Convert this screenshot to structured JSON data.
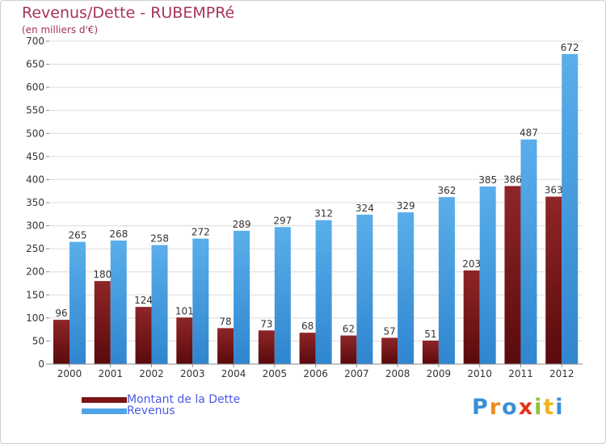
{
  "chart_data": {
    "type": "bar",
    "title": "Revenus/Dette - RUBEMPRé",
    "subtitle": "(en milliers d'€)",
    "categories": [
      "2000",
      "2001",
      "2002",
      "2003",
      "2004",
      "2005",
      "2006",
      "2007",
      "2008",
      "2009",
      "2010",
      "2011",
      "2012"
    ],
    "series": [
      {
        "name": "Montant de la Dette",
        "color": "#7a1416",
        "values": [
          96,
          180,
          124,
          101,
          78,
          73,
          68,
          62,
          57,
          51,
          203,
          386,
          363
        ]
      },
      {
        "name": "Revenus",
        "color": "#4ea4e6",
        "values": [
          265,
          268,
          258,
          272,
          289,
          297,
          312,
          324,
          329,
          362,
          385,
          487,
          672
        ]
      }
    ],
    "ylim": [
      0,
      700
    ],
    "yticks": [
      0,
      50,
      100,
      150,
      200,
      250,
      300,
      350,
      400,
      450,
      500,
      550,
      600,
      650,
      700
    ],
    "grid": true,
    "legend_position": "bottom-left"
  },
  "logo": {
    "letters": [
      "P",
      "r",
      "o",
      "x",
      "i",
      "t",
      "i"
    ],
    "colors": [
      "#3a8fd8",
      "#f08a1c",
      "#3a8fd8",
      "#e8321c",
      "#8cc43c",
      "#f0b41c",
      "#3a8fd8"
    ]
  }
}
